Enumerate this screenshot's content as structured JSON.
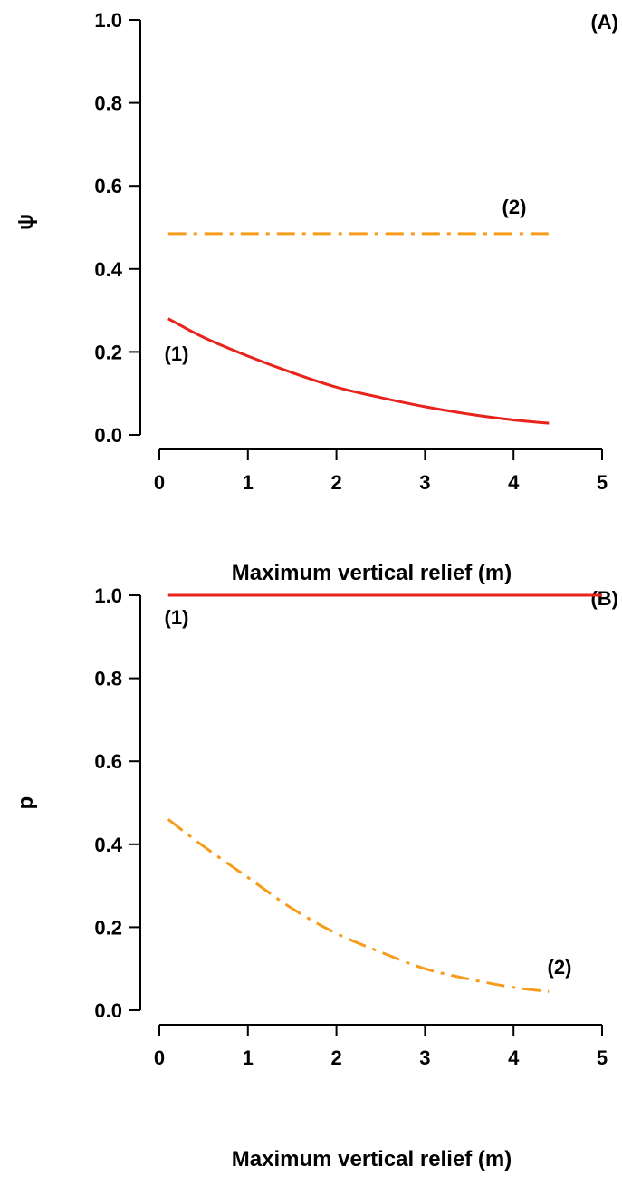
{
  "chart_data": [
    {
      "type": "line",
      "panel_label": "(A)",
      "xlabel": "Maximum vertical relief (m)",
      "ylabel": "ψ",
      "xlim": [
        0,
        5
      ],
      "ylim": [
        0,
        1
      ],
      "x_ticks": [
        "0",
        "1",
        "2",
        "3",
        "4",
        "5"
      ],
      "y_ticks": [
        "0.0",
        "0.2",
        "0.4",
        "0.6",
        "0.8",
        "1.0"
      ],
      "series": [
        {
          "label": "(1)",
          "color": "#e8231c",
          "dash": "solid",
          "x": [
            0.1,
            0.5,
            1.0,
            1.5,
            2.0,
            2.5,
            3.0,
            3.5,
            4.0,
            4.4
          ],
          "y": [
            0.28,
            0.235,
            0.19,
            0.15,
            0.115,
            0.09,
            0.068,
            0.05,
            0.036,
            0.028
          ]
        },
        {
          "label": "(2)",
          "color": "#f59c1a",
          "dash": "dashdot",
          "x": [
            0.1,
            4.4
          ],
          "y": [
            0.485,
            0.485
          ]
        }
      ]
    },
    {
      "type": "line",
      "panel_label": "(B)",
      "xlabel": "Maximum vertical relief (m)",
      "ylabel": "p",
      "xlim": [
        0,
        5
      ],
      "ylim": [
        0,
        1
      ],
      "x_ticks": [
        "0",
        "1",
        "2",
        "3",
        "4",
        "5"
      ],
      "y_ticks": [
        "0.0",
        "0.2",
        "0.4",
        "0.6",
        "0.8",
        "1.0"
      ],
      "series": [
        {
          "label": "(1)",
          "color": "#e8231c",
          "dash": "solid",
          "x": [
            0.1,
            5.0
          ],
          "y": [
            1.0,
            1.0
          ]
        },
        {
          "label": "(2)",
          "color": "#f59c1a",
          "dash": "dashdot",
          "x": [
            0.1,
            0.5,
            1.0,
            1.5,
            2.0,
            2.5,
            3.0,
            3.5,
            4.0,
            4.4
          ],
          "y": [
            0.46,
            0.395,
            0.32,
            0.245,
            0.185,
            0.14,
            0.1,
            0.075,
            0.055,
            0.045
          ]
        }
      ]
    }
  ]
}
